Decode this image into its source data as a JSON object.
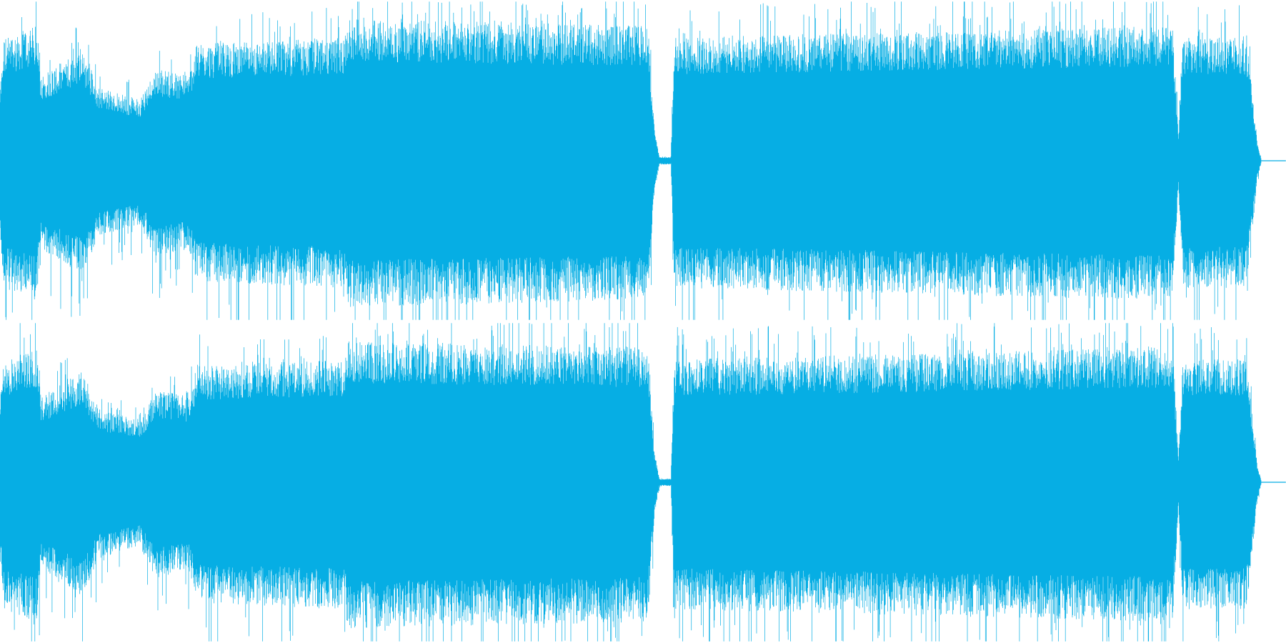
{
  "waveform": {
    "channels": 2,
    "color": "#06aee4",
    "background": "#ffffff"
  }
}
